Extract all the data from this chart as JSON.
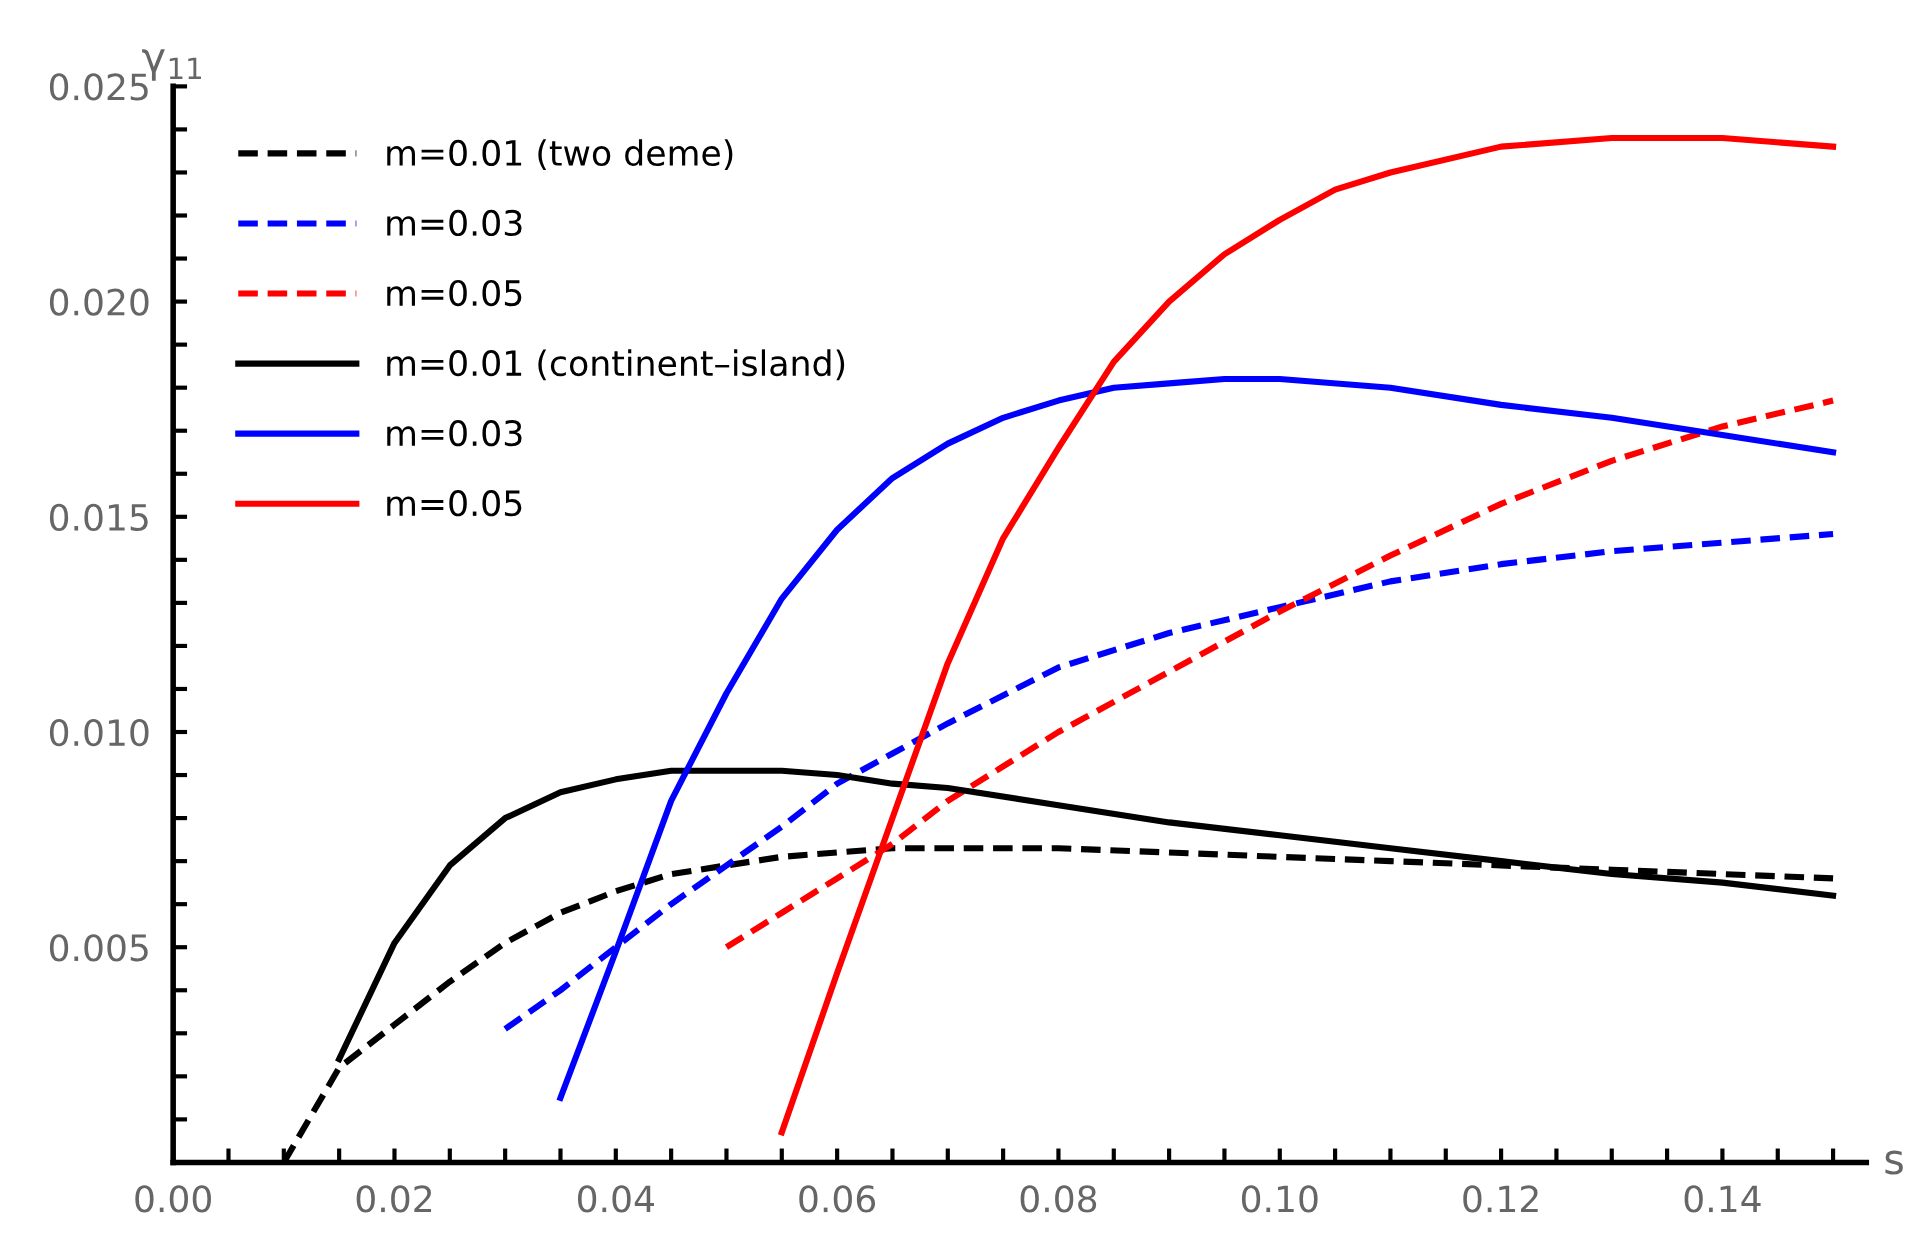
{
  "chart_data": {
    "type": "line",
    "xlabel": "s",
    "ylabel": "γ$_{11}$",
    "xlim": [
      0,
      0.153
    ],
    "ylim": [
      0,
      0.025
    ],
    "xticks": [
      {
        "value": 0,
        "label": "0.00"
      },
      {
        "value": 0.005,
        "label": null
      },
      {
        "value": 0.01,
        "label": null
      },
      {
        "value": 0.015,
        "label": null
      },
      {
        "value": 0.02,
        "label": "0.02"
      },
      {
        "value": 0.025,
        "label": null
      },
      {
        "value": 0.03,
        "label": null
      },
      {
        "value": 0.035,
        "label": null
      },
      {
        "value": 0.04,
        "label": "0.04"
      },
      {
        "value": 0.045,
        "label": null
      },
      {
        "value": 0.05,
        "label": null
      },
      {
        "value": 0.055,
        "label": null
      },
      {
        "value": 0.06,
        "label": "0.06"
      },
      {
        "value": 0.065,
        "label": null
      },
      {
        "value": 0.07,
        "label": null
      },
      {
        "value": 0.075,
        "label": null
      },
      {
        "value": 0.08,
        "label": "0.08"
      },
      {
        "value": 0.085,
        "label": null
      },
      {
        "value": 0.09,
        "label": null
      },
      {
        "value": 0.095,
        "label": null
      },
      {
        "value": 0.1,
        "label": "0.10"
      },
      {
        "value": 0.105,
        "label": null
      },
      {
        "value": 0.11,
        "label": null
      },
      {
        "value": 0.115,
        "label": null
      },
      {
        "value": 0.12,
        "label": "0.12"
      },
      {
        "value": 0.125,
        "label": null
      },
      {
        "value": 0.13,
        "label": null
      },
      {
        "value": 0.135,
        "label": null
      },
      {
        "value": 0.14,
        "label": "0.14"
      },
      {
        "value": 0.145,
        "label": null
      },
      {
        "value": 0.15,
        "label": null
      }
    ],
    "yticks": [
      {
        "value": 0,
        "label": null
      },
      {
        "value": 0.001,
        "label": null
      },
      {
        "value": 0.002,
        "label": null
      },
      {
        "value": 0.003,
        "label": null
      },
      {
        "value": 0.004,
        "label": null
      },
      {
        "value": 0.005,
        "label": "0.005"
      },
      {
        "value": 0.006,
        "label": null
      },
      {
        "value": 0.007,
        "label": null
      },
      {
        "value": 0.008,
        "label": null
      },
      {
        "value": 0.009,
        "label": null
      },
      {
        "value": 0.01,
        "label": "0.010"
      },
      {
        "value": 0.011,
        "label": null
      },
      {
        "value": 0.012,
        "label": null
      },
      {
        "value": 0.013,
        "label": null
      },
      {
        "value": 0.014,
        "label": null
      },
      {
        "value": 0.015,
        "label": "0.015"
      },
      {
        "value": 0.016,
        "label": null
      },
      {
        "value": 0.017,
        "label": null
      },
      {
        "value": 0.018,
        "label": null
      },
      {
        "value": 0.019,
        "label": null
      },
      {
        "value": 0.02,
        "label": "0.020"
      },
      {
        "value": 0.021,
        "label": null
      },
      {
        "value": 0.022,
        "label": null
      },
      {
        "value": 0.023,
        "label": null
      },
      {
        "value": 0.024,
        "label": null
      },
      {
        "value": 0.025,
        "label": "0.025"
      }
    ],
    "grid": false,
    "legend": "top left",
    "marker": "none",
    "series": [
      {
        "name": "m=0.01 (two deme)",
        "color": "#000000",
        "line_style": "dashed",
        "x": [
          0.01,
          0.015,
          0.02,
          0.025,
          0.03,
          0.035,
          0.04,
          0.045,
          0.05,
          0.055,
          0.06,
          0.065,
          0.07,
          0.08,
          0.09,
          0.1,
          0.11,
          0.12,
          0.13,
          0.14,
          0.15
        ],
        "values": [
          0,
          0.0022,
          0.0032,
          0.0042,
          0.0051,
          0.0058,
          0.0063,
          0.0067,
          0.0069,
          0.0071,
          0.0072,
          0.0073,
          0.0073,
          0.0073,
          0.0072,
          0.0071,
          0.007,
          0.0069,
          0.0068,
          0.0067,
          0.0066
        ]
      },
      {
        "name": "m=0.03",
        "color": "#0000ff",
        "line_style": "dashed",
        "x": [
          0.03,
          0.035,
          0.04,
          0.045,
          0.05,
          0.055,
          0.06,
          0.065,
          0.07,
          0.08,
          0.09,
          0.1,
          0.11,
          0.12,
          0.13,
          0.14,
          0.15
        ],
        "values": [
          0.0031,
          0.004,
          0.005,
          0.006,
          0.0069,
          0.0078,
          0.0088,
          0.0095,
          0.0102,
          0.0115,
          0.0123,
          0.0129,
          0.0135,
          0.0139,
          0.0142,
          0.0144,
          0.0146
        ]
      },
      {
        "name": "m=0.05",
        "color": "#ff0000",
        "line_style": "dashed",
        "x": [
          0.05,
          0.055,
          0.06,
          0.065,
          0.07,
          0.075,
          0.08,
          0.09,
          0.1,
          0.11,
          0.12,
          0.13,
          0.14,
          0.15
        ],
        "values": [
          0.005,
          0.0058,
          0.0066,
          0.0074,
          0.0084,
          0.0092,
          0.01,
          0.0114,
          0.0128,
          0.0141,
          0.0153,
          0.0163,
          0.0171,
          0.0177
        ]
      },
      {
        "name": "m=0.01 (continent–island)",
        "color": "#000000",
        "line_style": "solid",
        "x": [
          0.015,
          0.02,
          0.025,
          0.03,
          0.035,
          0.04,
          0.045,
          0.05,
          0.055,
          0.06,
          0.065,
          0.07,
          0.08,
          0.09,
          0.1,
          0.11,
          0.12,
          0.13,
          0.14,
          0.15
        ],
        "values": [
          0.0024,
          0.0051,
          0.0069,
          0.008,
          0.0086,
          0.0089,
          0.0091,
          0.0091,
          0.0091,
          0.009,
          0.0088,
          0.0087,
          0.0083,
          0.0079,
          0.0076,
          0.0073,
          0.007,
          0.0067,
          0.0065,
          0.0062
        ]
      },
      {
        "name": "m=0.03",
        "color": "#0000ff",
        "line_style": "solid",
        "x": [
          0.035,
          0.04,
          0.045,
          0.05,
          0.055,
          0.06,
          0.065,
          0.07,
          0.075,
          0.08,
          0.085,
          0.09,
          0.095,
          0.1,
          0.11,
          0.12,
          0.13,
          0.14,
          0.15
        ],
        "values": [
          0.0015,
          0.0049,
          0.0084,
          0.0109,
          0.0131,
          0.0147,
          0.0159,
          0.0167,
          0.0173,
          0.0177,
          0.018,
          0.0181,
          0.0182,
          0.0182,
          0.018,
          0.0176,
          0.0173,
          0.0169,
          0.0165
        ]
      },
      {
        "name": "m=0.05",
        "color": "#ff0000",
        "line_style": "solid",
        "x": [
          0.055,
          0.06,
          0.065,
          0.07,
          0.075,
          0.08,
          0.085,
          0.09,
          0.095,
          0.1,
          0.105,
          0.11,
          0.12,
          0.13,
          0.14,
          0.15
        ],
        "values": [
          0.0007,
          0.0044,
          0.008,
          0.0116,
          0.0145,
          0.0166,
          0.0186,
          0.02,
          0.0211,
          0.0219,
          0.0226,
          0.023,
          0.0236,
          0.0238,
          0.0238,
          0.0236
        ]
      }
    ]
  }
}
